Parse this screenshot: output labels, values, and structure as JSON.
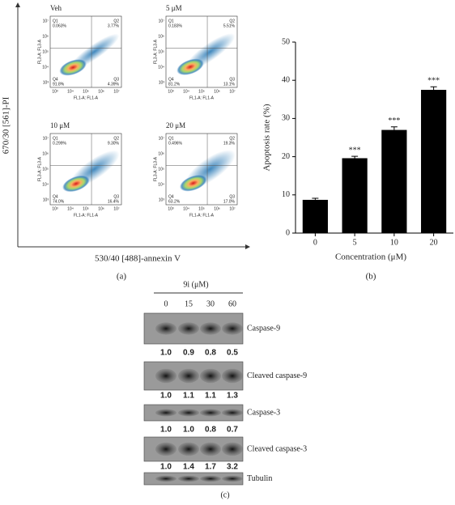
{
  "panel_a": {
    "label": "(a)",
    "y_label": "670/30 [561]-PI",
    "x_label": "530/40 [488]-annexin V",
    "plot_x_label": "FL1-A: FL1-A",
    "plot_y_label": "FL3-A: FL3-A",
    "ticks": [
      "10³",
      "10⁴",
      "10⁵",
      "10⁶",
      "10⁷"
    ],
    "plots": [
      {
        "title": "Veh",
        "quadrants": [
          {
            "label": "Q1",
            "value": "0.063%"
          },
          {
            "label": "Q2",
            "value": "3.77%"
          },
          {
            "label": "Q4",
            "value": "91.8%"
          },
          {
            "label": "Q3",
            "value": "4.39%"
          }
        ]
      },
      {
        "title": "5 μM",
        "quadrants": [
          {
            "label": "Q1",
            "value": "0.183%"
          },
          {
            "label": "Q2",
            "value": "5.51%"
          },
          {
            "label": "Q4",
            "value": "81.2%"
          },
          {
            "label": "Q3",
            "value": "13.1%"
          }
        ]
      },
      {
        "title": "10 μM",
        "quadrants": [
          {
            "label": "Q1",
            "value": "0.299%"
          },
          {
            "label": "Q2",
            "value": "9.30%"
          },
          {
            "label": "Q4",
            "value": "74.0%"
          },
          {
            "label": "Q3",
            "value": "16.4%"
          }
        ]
      },
      {
        "title": "20 μM",
        "quadrants": [
          {
            "label": "Q1",
            "value": "0.496%"
          },
          {
            "label": "Q2",
            "value": "19.3%"
          },
          {
            "label": "Q4",
            "value": "63.2%"
          },
          {
            "label": "Q3",
            "value": "17.0%"
          }
        ]
      }
    ]
  },
  "chart_data": {
    "type": "bar",
    "label": "(b)",
    "y_label": "Apoptosis rate (%)",
    "x_label": "Concentration (μM)",
    "categories": [
      "0",
      "5",
      "10",
      "20"
    ],
    "values": [
      8.7,
      19.6,
      27.0,
      37.5
    ],
    "errors": [
      0.4,
      0.5,
      0.8,
      0.8
    ],
    "annotations": [
      null,
      "***",
      "***",
      "***"
    ],
    "color": "#000000",
    "ylim": [
      0,
      50
    ],
    "yticks": [
      0,
      10,
      20,
      30,
      40,
      50
    ]
  },
  "panel_c": {
    "label": "(c)",
    "treatment": "9i (μM)",
    "lanes": [
      "0",
      "15",
      "30",
      "60"
    ],
    "rows": [
      {
        "name": "Caspase-9",
        "quant": [
          "1.0",
          "0.9",
          "0.8",
          "0.5"
        ]
      },
      {
        "name": "Cleaved caspase-9",
        "quant": [
          "1.0",
          "1.1",
          "1.1",
          "1.3"
        ]
      },
      {
        "name": "Caspase-3",
        "quant": [
          "1.0",
          "1.0",
          "0.8",
          "0.7"
        ]
      },
      {
        "name": "Cleaved caspase-3",
        "quant": [
          "1.0",
          "1.4",
          "1.7",
          "3.2"
        ]
      },
      {
        "name": "Tubulin"
      }
    ]
  }
}
